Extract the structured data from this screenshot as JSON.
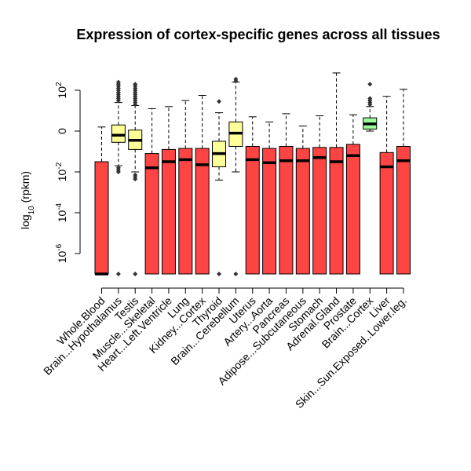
{
  "chart_data": {
    "type": "boxplot",
    "title": "Expression of cortex-specific genes across all tissues",
    "ylabel": {
      "base": "log",
      "sub": "10",
      "rest": " (rpkm)"
    },
    "y_scale": "log10",
    "ylim": [
      -7,
      3
    ],
    "y_ticks": [
      {
        "value": -6,
        "label_base": "10",
        "label_exp": "-6"
      },
      {
        "value": -4,
        "label_base": "10",
        "label_exp": "-4"
      },
      {
        "value": -2,
        "label_base": "10",
        "label_exp": "-2"
      },
      {
        "value": 0,
        "label_base": "0",
        "label_exp": ""
      },
      {
        "value": 2,
        "label_base": "10",
        "label_exp": "2"
      }
    ],
    "colors": {
      "red": "#ff4444",
      "yellow": "#ffff99",
      "green": "#99ff99"
    },
    "boxes": [
      {
        "name": "Whole.Blood",
        "color": "red",
        "whisker_low": null,
        "q1": -7,
        "median": -7,
        "q3": -1.5,
        "whisker_high": 0.2,
        "outliers": []
      },
      {
        "name": "Brain...Hypothalamus",
        "color": "yellow",
        "whisker_low": -1.7,
        "q1": -0.55,
        "median": -0.2,
        "q3": 0.3,
        "whisker_high": 1.4,
        "outliers": [
          2.4,
          2.3,
          2.2,
          2.1,
          2.0,
          1.9,
          1.8,
          1.7,
          1.6,
          1.5,
          -1.8,
          -1.9,
          -2.0,
          -7
        ]
      },
      {
        "name": "Testis",
        "color": "yellow",
        "whisker_low": -2.0,
        "q1": -0.9,
        "median": -0.45,
        "q3": 0.05,
        "whisker_high": 1.25,
        "outliers": [
          2.3,
          2.2,
          2.1,
          2.0,
          1.9,
          1.8,
          1.7,
          1.6,
          1.5,
          1.4,
          1.3,
          -2.15,
          -2.25,
          -2.35,
          -7
        ]
      },
      {
        "name": "Muscle...Skeletal",
        "color": "red",
        "whisker_low": null,
        "q1": -7,
        "median": -1.8,
        "q3": -1.1,
        "whisker_high": 1.1,
        "outliers": []
      },
      {
        "name": "Heart...Left.Ventricle",
        "color": "red",
        "whisker_low": null,
        "q1": -7,
        "median": -1.5,
        "q3": -0.9,
        "whisker_high": 1.2,
        "outliers": []
      },
      {
        "name": "Lung",
        "color": "red",
        "whisker_low": null,
        "q1": -7,
        "median": -1.4,
        "q3": -0.85,
        "whisker_high": 1.5,
        "outliers": []
      },
      {
        "name": "Kidney...Cortex",
        "color": "red",
        "whisker_low": null,
        "q1": -7,
        "median": -1.65,
        "q3": -0.85,
        "whisker_high": 1.75,
        "outliers": []
      },
      {
        "name": "Thyroid",
        "color": "yellow",
        "whisker_low": -2.4,
        "q1": -1.75,
        "median": -1.1,
        "q3": -0.5,
        "whisker_high": 0.9,
        "outliers": [
          1.45,
          -7
        ]
      },
      {
        "name": "Brain...Cerebellum",
        "color": "yellow",
        "whisker_low": -2.0,
        "q1": -0.75,
        "median": -0.1,
        "q3": 0.45,
        "whisker_high": 2.4,
        "outliers": [
          2.55,
          2.45,
          -7
        ]
      },
      {
        "name": "Uterus",
        "color": "red",
        "whisker_low": null,
        "q1": -7,
        "median": -1.4,
        "q3": -0.75,
        "whisker_high": 0.7,
        "outliers": []
      },
      {
        "name": "Artery...Aorta",
        "color": "red",
        "whisker_low": null,
        "q1": -7,
        "median": -1.55,
        "q3": -0.85,
        "whisker_high": 0.45,
        "outliers": []
      },
      {
        "name": "Pancreas",
        "color": "red",
        "whisker_low": null,
        "q1": -7,
        "median": -1.45,
        "q3": -0.75,
        "whisker_high": 0.85,
        "outliers": []
      },
      {
        "name": "Adipose...Subcutaneous",
        "color": "red",
        "whisker_low": null,
        "q1": -7,
        "median": -1.45,
        "q3": -0.85,
        "whisker_high": 0.25,
        "outliers": []
      },
      {
        "name": "Stomach",
        "color": "red",
        "whisker_low": null,
        "q1": -7,
        "median": -1.3,
        "q3": -0.8,
        "whisker_high": 0.75,
        "outliers": []
      },
      {
        "name": "Adrenal.Gland",
        "color": "red",
        "whisker_low": null,
        "q1": -7,
        "median": -1.5,
        "q3": -0.8,
        "whisker_high": 2.85,
        "outliers": []
      },
      {
        "name": "Prostate",
        "color": "red",
        "whisker_low": null,
        "q1": -7,
        "median": -1.2,
        "q3": -0.65,
        "whisker_high": 0.8,
        "outliers": []
      },
      {
        "name": "Brain...Cortex",
        "color": "green",
        "whisker_low": 0.0,
        "q1": 0.1,
        "median": 0.35,
        "q3": 0.65,
        "whisker_high": 1.2,
        "outliers": [
          2.3,
          1.6,
          1.5,
          1.4,
          1.3
        ]
      },
      {
        "name": "Liver",
        "color": "red",
        "whisker_low": null,
        "q1": -7,
        "median": -1.75,
        "q3": -1.05,
        "whisker_high": 1.7,
        "outliers": []
      },
      {
        "name": "Skin...Sun.Exposed..Lower.leg.",
        "color": "red",
        "whisker_low": null,
        "q1": -7,
        "median": -1.45,
        "q3": -0.75,
        "whisker_high": 2.05,
        "outliers": []
      }
    ]
  }
}
